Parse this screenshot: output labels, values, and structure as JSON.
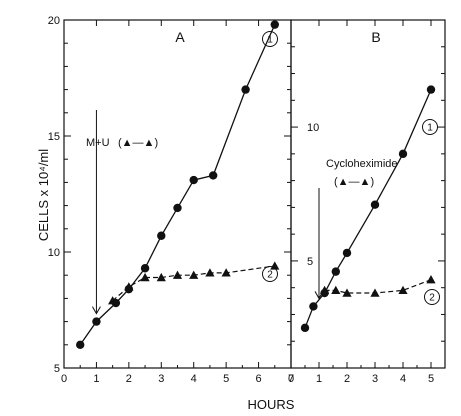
{
  "chart_data": [
    {
      "panel": "A",
      "type": "scatter",
      "title": "A",
      "xlabel": "HOURS",
      "ylabel": "CELLS x 10⁴/ml",
      "xlim": [
        0,
        7
      ],
      "ylim": [
        5,
        20
      ],
      "xticks": [
        "0",
        "1",
        "2",
        "3",
        "4",
        "5",
        "6",
        "7"
      ],
      "yticks": [
        "5",
        "10",
        "15",
        "20"
      ],
      "annotation": {
        "text": "M+U",
        "legend_text": "(▲—▲)",
        "arrow_x": 1
      },
      "series": [
        {
          "name": "1",
          "marker": "circle",
          "points": [
            [
              0.5,
              6.0
            ],
            [
              1.0,
              7.0
            ],
            [
              1.6,
              7.8
            ],
            [
              2.0,
              8.4
            ],
            [
              2.5,
              9.3
            ],
            [
              3.0,
              10.7
            ],
            [
              3.5,
              11.9
            ],
            [
              4.0,
              13.1
            ],
            [
              4.6,
              13.3
            ],
            [
              5.6,
              17.0
            ],
            [
              6.5,
              19.8
            ]
          ]
        },
        {
          "name": "2",
          "marker": "triangle",
          "points": [
            [
              1.5,
              7.9
            ],
            [
              2.0,
              8.5
            ],
            [
              2.5,
              8.9
            ],
            [
              3.0,
              8.9
            ],
            [
              3.5,
              9.0
            ],
            [
              4.0,
              9.0
            ],
            [
              4.5,
              9.1
            ],
            [
              5.0,
              9.1
            ],
            [
              6.5,
              9.4
            ]
          ]
        }
      ]
    },
    {
      "panel": "B",
      "type": "scatter",
      "title": "B",
      "xlabel": "HOURS",
      "xlim": [
        0,
        5.5
      ],
      "ylim": [
        1,
        14
      ],
      "xticks": [
        "0",
        "1",
        "2",
        "3",
        "4",
        "5"
      ],
      "yticks": [
        "5",
        "10"
      ],
      "annotation": {
        "text": "Cycloheximide",
        "legend_text": "(▲—▲)",
        "arrow_x": 1
      },
      "series": [
        {
          "name": "1",
          "marker": "circle",
          "points": [
            [
              0.5,
              2.5
            ],
            [
              0.8,
              3.3
            ],
            [
              1.2,
              3.8
            ],
            [
              1.6,
              4.6
            ],
            [
              2.0,
              5.3
            ],
            [
              3.0,
              7.1
            ],
            [
              4.0,
              9.0
            ],
            [
              5.0,
              11.4
            ]
          ]
        },
        {
          "name": "2",
          "marker": "triangle",
          "points": [
            [
              1.2,
              3.9
            ],
            [
              1.6,
              3.9
            ],
            [
              2.0,
              3.8
            ],
            [
              3.0,
              3.8
            ],
            [
              4.0,
              3.9
            ],
            [
              5.0,
              4.3
            ]
          ]
        }
      ]
    }
  ]
}
